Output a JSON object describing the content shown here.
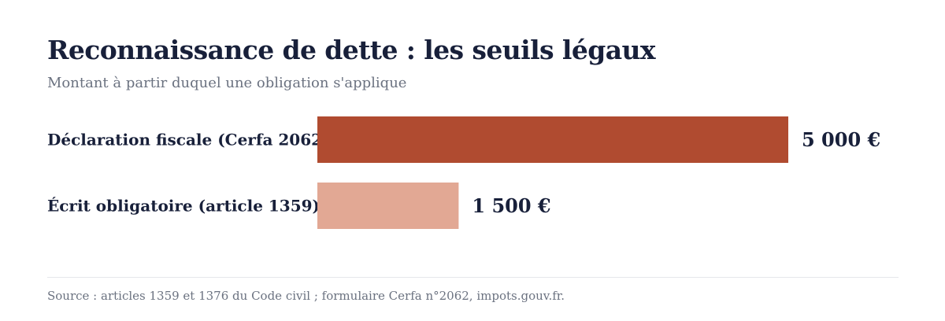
{
  "title": "Reconnaissance de dette : les seuils légaux",
  "subtitle": "Montant à partir duquel une obligation s'applique",
  "source": "Source : articles 1359 et 1376 du Code civil ; formulaire Cerfa n°2062, impots.gouv.fr.",
  "chart_data": {
    "type": "bar",
    "orientation": "horizontal",
    "title": "Reconnaissance de dette : les seuils légaux",
    "subtitle": "Montant à partir duquel une obligation s'applique",
    "categories": [
      "Déclaration fiscale (Cerfa 2062)",
      "Écrit obligatoire (article 1359)"
    ],
    "values": [
      5000,
      1500
    ],
    "value_labels": [
      "5 000 €",
      "1 500 €"
    ],
    "colors": [
      "#b04b30",
      "#e2a894"
    ],
    "unit": "€",
    "xlim": [
      0,
      5000
    ],
    "grid": false,
    "legend": "none"
  }
}
